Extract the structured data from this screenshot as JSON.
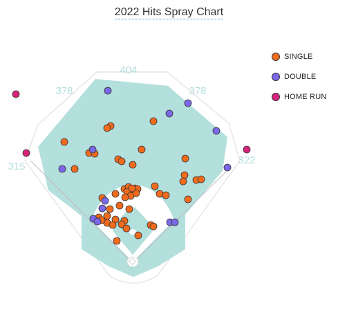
{
  "chart_data": {
    "type": "scatter",
    "title": "2022 Hits Spray Chart",
    "distance_labels": [
      "315",
      "378",
      "404",
      "378",
      "322"
    ],
    "legend_placement": "top-right",
    "grid": false,
    "colors": {
      "outfield": "#b3dfdc",
      "field_outline": "#e2e2e2",
      "foul_line": "#bdbdbd",
      "distance_text": "#b3dfdc",
      "infield_dirt": "#ffffff"
    },
    "series": [
      {
        "name": "SINGLE",
        "color": "#f26b1d",
        "points": [
          [
            93,
            205
          ],
          [
            160,
            182
          ],
          [
            155,
            185
          ],
          [
            222,
            175
          ],
          [
            205,
            216
          ],
          [
            129,
            221
          ],
          [
            137,
            222
          ],
          [
            171,
            230
          ],
          [
            176,
            233
          ],
          [
            108,
            244
          ],
          [
            192,
            238
          ],
          [
            268,
            229
          ],
          [
            267,
            253
          ],
          [
            265,
            262
          ],
          [
            284,
            260
          ],
          [
            291,
            259
          ],
          [
            272,
            288
          ],
          [
            224,
            269
          ],
          [
            231,
            280
          ],
          [
            240,
            282
          ],
          [
            180,
            273
          ],
          [
            186,
            270
          ],
          [
            190,
            276
          ],
          [
            195,
            272
          ],
          [
            199,
            273
          ],
          [
            184,
            277
          ],
          [
            189,
            283
          ],
          [
            181,
            285
          ],
          [
            197,
            279
          ],
          [
            191,
            272
          ],
          [
            148,
            286
          ],
          [
            167,
            280
          ],
          [
            173,
            297
          ],
          [
            187,
            302
          ],
          [
            159,
            302
          ],
          [
            155,
            312
          ],
          [
            155,
            322
          ],
          [
            143,
            314
          ],
          [
            147,
            318
          ],
          [
            167,
            317
          ],
          [
            180,
            319
          ],
          [
            176,
            324
          ],
          [
            163,
            325
          ],
          [
            183,
            330
          ],
          [
            218,
            325
          ],
          [
            222,
            327
          ],
          [
            200,
            340
          ],
          [
            169,
            348
          ]
        ]
      },
      {
        "name": "DOUBLE",
        "color": "#7b68e8",
        "points": [
          [
            156,
            131
          ],
          [
            272,
            149
          ],
          [
            245,
            164
          ],
          [
            313,
            189
          ],
          [
            134,
            216
          ],
          [
            90,
            244
          ],
          [
            329,
            242
          ],
          [
            152,
            290
          ],
          [
            148,
            301
          ],
          [
            135,
            316
          ],
          [
            141,
            320
          ],
          [
            246,
            321
          ],
          [
            253,
            321
          ]
        ]
      },
      {
        "name": "HOME RUN",
        "color": "#d6247a",
        "points": [
          [
            23,
            136
          ],
          [
            38,
            221
          ],
          [
            357,
            216
          ]
        ]
      }
    ]
  }
}
